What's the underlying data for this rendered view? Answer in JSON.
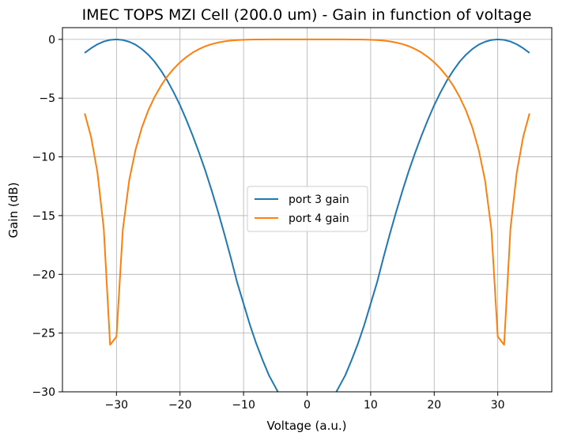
{
  "chart_data": {
    "type": "line",
    "title": "IMEC TOPS MZI Cell (200.0 um)  -  Gain in function of voltage",
    "xlabel": "Voltage (a.u.)",
    "ylabel": "Gain (dB)",
    "xlim": [
      -38.5,
      38.5
    ],
    "ylim": [
      -30,
      1
    ],
    "xticks": [
      -30,
      -20,
      -10,
      0,
      10,
      20,
      30
    ],
    "xtick_labels": [
      "−30",
      "−20",
      "−10",
      "0",
      "10",
      "20",
      "30"
    ],
    "yticks": [
      0,
      -5,
      -10,
      -15,
      -20,
      -25,
      -30
    ],
    "ytick_labels": [
      "0",
      "−5",
      "−10",
      "−15",
      "−20",
      "−25",
      "−30"
    ],
    "grid": true,
    "legend_position": "center",
    "series": [
      {
        "name": "port 3 gain",
        "color": "#1f77b4",
        "x": [
          -35,
          -34,
          -33,
          -32,
          -31,
          -30,
          -29,
          -28,
          -27,
          -26,
          -25,
          -24,
          -23,
          -22,
          -21,
          -20,
          -19,
          -18,
          -17,
          -16,
          -15,
          -14,
          -13,
          -12,
          -11,
          -10,
          -9,
          -8,
          -7,
          -6,
          -5,
          -4.5,
          4.5,
          5,
          6,
          7,
          8,
          9,
          10,
          11,
          12,
          13,
          14,
          15,
          16,
          17,
          18,
          19,
          20,
          21,
          22,
          23,
          24,
          25,
          26,
          27,
          28,
          29,
          30,
          31,
          32,
          33,
          34,
          35
        ],
        "y": [
          -1.15,
          -0.75,
          -0.42,
          -0.18,
          -0.04,
          0.0,
          -0.05,
          -0.2,
          -0.45,
          -0.82,
          -1.3,
          -1.9,
          -2.65,
          -3.5,
          -4.5,
          -5.6,
          -6.85,
          -8.2,
          -9.65,
          -11.2,
          -12.9,
          -14.7,
          -16.6,
          -18.6,
          -20.7,
          -22.5,
          -24.3,
          -25.9,
          -27.3,
          -28.6,
          -29.6,
          -30.1,
          -30.1,
          -29.6,
          -28.6,
          -27.3,
          -25.9,
          -24.3,
          -22.5,
          -20.7,
          -18.6,
          -16.6,
          -14.7,
          -12.9,
          -11.2,
          -9.65,
          -8.2,
          -6.85,
          -5.6,
          -4.5,
          -3.5,
          -2.65,
          -1.9,
          -1.3,
          -0.82,
          -0.45,
          -0.2,
          -0.05,
          0.0,
          -0.04,
          -0.18,
          -0.42,
          -0.75,
          -1.15
        ]
      },
      {
        "name": "port 4 gain",
        "color": "#ff7f0e",
        "x": [
          -35,
          -34,
          -33,
          -32,
          -31,
          -30,
          -29,
          -28,
          -27,
          -26,
          -25,
          -24,
          -23,
          -22,
          -21,
          -20,
          -19,
          -18,
          -17,
          -16,
          -15,
          -14,
          -13,
          -12,
          -11,
          -10,
          -9,
          -8,
          -7,
          -6,
          -5,
          -4,
          -3,
          -2,
          -1,
          0,
          1,
          2,
          3,
          4,
          5,
          6,
          7,
          8,
          9,
          10,
          11,
          12,
          13,
          14,
          15,
          16,
          17,
          18,
          19,
          20,
          21,
          22,
          23,
          24,
          25,
          26,
          27,
          28,
          29,
          30,
          31,
          32,
          33,
          34,
          35
        ],
        "y": [
          -6.3,
          -8.3,
          -11.3,
          -16.1,
          -26.0,
          -25.3,
          -16.2,
          -12.0,
          -9.4,
          -7.5,
          -6.05,
          -4.9,
          -3.95,
          -3.15,
          -2.5,
          -1.95,
          -1.5,
          -1.12,
          -0.82,
          -0.58,
          -0.4,
          -0.27,
          -0.17,
          -0.1,
          -0.06,
          -0.03,
          -0.02,
          -0.01,
          -0.01,
          0.0,
          0.0,
          0.0,
          0.0,
          0.0,
          0.0,
          0.0,
          0.0,
          0.0,
          0.0,
          0.0,
          0.0,
          0.0,
          -0.01,
          -0.01,
          -0.02,
          -0.03,
          -0.06,
          -0.1,
          -0.17,
          -0.27,
          -0.4,
          -0.58,
          -0.82,
          -1.12,
          -1.5,
          -1.95,
          -2.5,
          -3.15,
          -3.95,
          -4.9,
          -6.05,
          -7.5,
          -9.4,
          -12.0,
          -16.2,
          -25.3,
          -26.0,
          -16.1,
          -11.3,
          -8.3,
          -6.3
        ]
      }
    ]
  }
}
